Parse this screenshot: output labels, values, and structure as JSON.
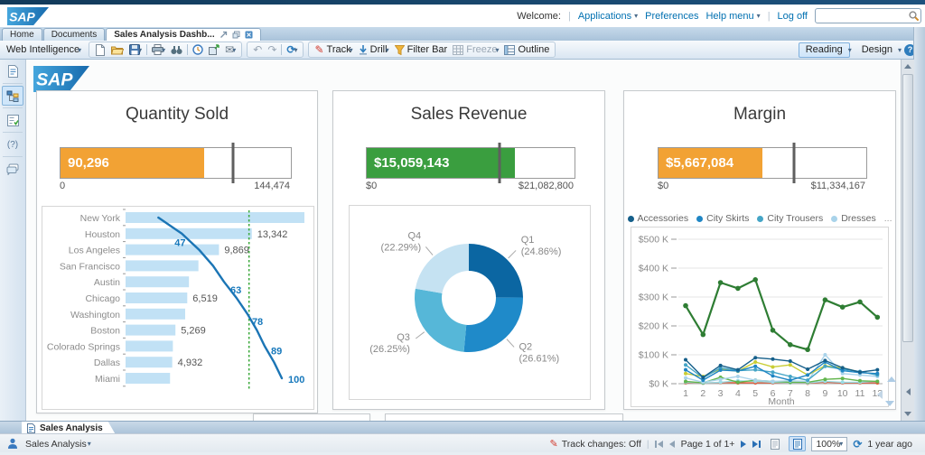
{
  "header": {
    "welcome": "Welcome:",
    "applications": "Applications",
    "preferences": "Preferences",
    "help_menu": "Help menu",
    "log_off": "Log off",
    "search_value": ""
  },
  "main_tabs": {
    "home": "Home",
    "documents": "Documents",
    "active_tab": "Sales Analysis Dashb..."
  },
  "toolbar": {
    "product_menu": "Web Intelligence",
    "track": "Track",
    "drill": "Drill",
    "filter_bar": "Filter Bar",
    "freeze": "Freeze",
    "outline": "Outline",
    "reading": "Reading",
    "design": "Design"
  },
  "report_tab": "Sales Analysis",
  "status_bar": {
    "report_selector": "Sales Analysis",
    "track_changes": "Track changes: Off",
    "page": "Page 1 of 1+",
    "zoom": "100%",
    "refreshed": "1 year ago"
  },
  "chart_data": [
    {
      "type": "bullet",
      "title": "Quantity Sold",
      "value": 90296,
      "value_label": "90,296",
      "min_label": "0",
      "max_label": "144,474",
      "max": 144474,
      "target": 108000,
      "bar_color": "#f2a234"
    },
    {
      "type": "bar",
      "subtype": "pareto",
      "categories": [
        "New York",
        "Houston",
        "Los Angeles",
        "San Francisco",
        "Austin",
        "Chicago",
        "Washington",
        "Boston",
        "Colorado Springs",
        "Dallas",
        "Miami"
      ],
      "values": [
        18900,
        13342,
        9869,
        7700,
        6700,
        6519,
        6300,
        5269,
        5000,
        4932,
        4700
      ],
      "value_labels": [
        "",
        "13,342",
        "9,869",
        "",
        "",
        "6,519",
        "",
        "5,269",
        "",
        "4,932",
        ""
      ],
      "cumulative_pct": [
        21,
        36,
        47,
        56,
        63,
        71,
        78,
        84,
        89,
        95,
        100
      ],
      "cumulative_labels": [
        "",
        "",
        "47",
        "",
        "63",
        "",
        "78",
        "",
        "89",
        "",
        "100"
      ],
      "bar_color": "#c1e1f5",
      "line_color": "#1b75b5",
      "threshold_pct": 79,
      "threshold_color": "#3faa3f"
    },
    {
      "type": "bullet",
      "title": "Sales Revenue",
      "value": 15059143,
      "value_label": "$15,059,143",
      "min_label": "$0",
      "max_label": "$21,082,800",
      "max": 21082800,
      "target": 13450000,
      "bar_color": "#3a9e3f"
    },
    {
      "type": "pie",
      "donut": true,
      "labels": [
        "Q1",
        "Q2",
        "Q3",
        "Q4"
      ],
      "pct_labels": [
        "(24.86%)",
        "(26.61%)",
        "(26.25%)",
        "(22.29%)"
      ],
      "values": [
        24.86,
        26.61,
        26.25,
        22.29
      ],
      "colors": [
        "#0b66a2",
        "#1f8ac9",
        "#56b7d8",
        "#c5e2f2"
      ]
    },
    {
      "type": "bullet",
      "title": "Margin",
      "value": 5667084,
      "value_label": "$5,667,084",
      "min_label": "$0",
      "max_label": "$11,334,167",
      "max": 11334167,
      "target": 7380000,
      "bar_color": "#f2a234"
    },
    {
      "type": "line",
      "xlabel": "Month",
      "x": [
        1,
        2,
        3,
        4,
        5,
        6,
        7,
        8,
        9,
        10,
        11,
        12
      ],
      "yticks": [
        "$500 K",
        "$400 K",
        "$300 K",
        "$200 K",
        "$100 K",
        "$0 K"
      ],
      "ylim_k": [
        0,
        500
      ],
      "legend_visible": [
        "Accessories",
        "City Skirts",
        "City Trousers",
        "Dresses"
      ],
      "legend_more": "...",
      "series": [
        {
          "name": "(not shown)",
          "color": "#e0532f",
          "values_k": [
            3,
            2,
            4,
            3,
            3,
            3,
            3,
            2,
            5,
            3,
            3,
            3
          ]
        },
        {
          "name": "(not shown)",
          "color": "#9adce6",
          "values_k": [
            5,
            2,
            5,
            10,
            8,
            5,
            3,
            3,
            8,
            5,
            5,
            8
          ]
        },
        {
          "name": "(not shown)",
          "color": "#62b54d",
          "values_k": [
            8,
            3,
            22,
            5,
            12,
            8,
            5,
            5,
            15,
            18,
            10,
            8
          ]
        },
        {
          "name": "Dresses",
          "color": "#a9d3ea",
          "values_k": [
            20,
            5,
            15,
            25,
            12,
            8,
            10,
            8,
            100,
            35,
            30,
            25
          ]
        },
        {
          "name": "(not shown)",
          "color": "#c9cd35",
          "values_k": [
            35,
            25,
            50,
            43,
            75,
            58,
            65,
            30,
            62,
            55,
            40,
            33
          ]
        },
        {
          "name": "City Trousers",
          "color": "#45a5c6",
          "values_k": [
            65,
            20,
            55,
            45,
            48,
            40,
            25,
            12,
            60,
            50,
            42,
            30
          ]
        },
        {
          "name": "City Skirts",
          "color": "#1f86c4",
          "values_k": [
            48,
            12,
            47,
            44,
            60,
            27,
            12,
            30,
            75,
            45,
            38,
            35
          ]
        },
        {
          "name": "Accessories",
          "color": "#155f8a",
          "values_k": [
            83,
            22,
            63,
            48,
            90,
            85,
            78,
            50,
            80,
            55,
            40,
            48
          ]
        },
        {
          "name": "(not shown)",
          "color": "#2e7d33",
          "emph": true,
          "values_k": [
            270,
            170,
            350,
            330,
            360,
            185,
            135,
            118,
            290,
            265,
            283,
            230
          ]
        }
      ]
    }
  ]
}
